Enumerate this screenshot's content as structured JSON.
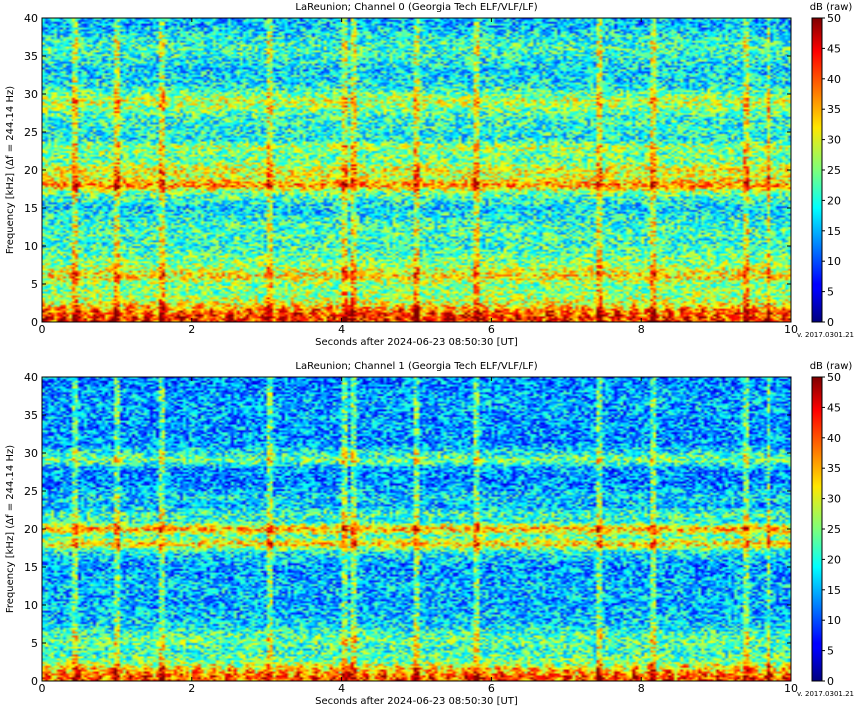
{
  "chart_data": [
    {
      "type": "heatmap",
      "title": "LaReunion; Channel 0 (Georgia Tech ELF/VLF/LF)",
      "xlabel": "Seconds after 2024-06-23 08:50:30 [UT]",
      "ylabel": "Frequency [kHz] (Δf = 244.14 Hz)",
      "xlim": [
        0,
        10
      ],
      "ylim": [
        0,
        40
      ],
      "xticks": [
        "0",
        "2",
        "4",
        "6",
        "8",
        "10"
      ],
      "yticks": [
        "0",
        "5",
        "10",
        "15",
        "20",
        "25",
        "30",
        "35",
        "40"
      ],
      "colorbar": {
        "label": "dB (raw)",
        "range": [
          0,
          50
        ],
        "ticks": [
          "0",
          "5",
          "10",
          "15",
          "20",
          "25",
          "30",
          "35",
          "40",
          "45",
          "50"
        ],
        "colormap": "jet"
      },
      "version": "v. 2017.0301.21",
      "frequency_profile_db": [
        [
          0.5,
          42
        ],
        [
          1.5,
          38
        ],
        [
          2.5,
          30
        ],
        [
          3.5,
          26
        ],
        [
          5,
          25
        ],
        [
          6,
          33
        ],
        [
          7.5,
          26
        ],
        [
          10,
          21
        ],
        [
          12.5,
          22
        ],
        [
          15,
          17
        ],
        [
          17,
          24
        ],
        [
          18,
          38
        ],
        [
          19,
          29
        ],
        [
          20,
          31
        ],
        [
          21,
          25
        ],
        [
          22,
          23
        ],
        [
          23,
          28
        ],
        [
          24,
          19
        ],
        [
          25,
          20
        ],
        [
          27,
          21
        ],
        [
          29,
          29
        ],
        [
          31,
          19
        ],
        [
          33,
          17
        ],
        [
          36,
          22
        ],
        [
          39,
          16
        ]
      ],
      "sferic_times_s": [
        0.45,
        1.0,
        1.6,
        3.05,
        4.05,
        4.15,
        5.0,
        5.8,
        7.45,
        8.15,
        9.4,
        9.7
      ]
    },
    {
      "type": "heatmap",
      "title": "LaReunion; Channel 1 (Georgia Tech ELF/VLF/LF)",
      "xlabel": "Seconds after 2024-06-23 08:50:30 [UT]",
      "ylabel": "Frequency [kHz] (Δf = 244.14 Hz)",
      "xlim": [
        0,
        10
      ],
      "ylim": [
        0,
        40
      ],
      "xticks": [
        "0",
        "2",
        "4",
        "6",
        "8",
        "10"
      ],
      "yticks": [
        "0",
        "5",
        "10",
        "15",
        "20",
        "25",
        "30",
        "35",
        "40"
      ],
      "colorbar": {
        "label": "dB (raw)",
        "range": [
          0,
          50
        ],
        "ticks": [
          "0",
          "5",
          "10",
          "15",
          "20",
          "25",
          "30",
          "35",
          "40",
          "45",
          "50"
        ],
        "colormap": "jet"
      },
      "version": "v. 2017.0301.21",
      "frequency_profile_db": [
        [
          0.5,
          40
        ],
        [
          1.5,
          34
        ],
        [
          2.5,
          25
        ],
        [
          4,
          21
        ],
        [
          5.5,
          24
        ],
        [
          7.5,
          17
        ],
        [
          10,
          15
        ],
        [
          12.5,
          16
        ],
        [
          15,
          14
        ],
        [
          17,
          19
        ],
        [
          18,
          34
        ],
        [
          19,
          22
        ],
        [
          20,
          36
        ],
        [
          21,
          20
        ],
        [
          22,
          22
        ],
        [
          23,
          15
        ],
        [
          24,
          18
        ],
        [
          26,
          13
        ],
        [
          28,
          14
        ],
        [
          29,
          25
        ],
        [
          31,
          14
        ],
        [
          34,
          14
        ],
        [
          37,
          15
        ],
        [
          39,
          13
        ]
      ],
      "sferic_times_s": [
        0.45,
        1.0,
        1.6,
        3.05,
        4.05,
        4.15,
        5.0,
        5.8,
        7.45,
        8.15,
        9.4,
        9.7
      ]
    }
  ]
}
